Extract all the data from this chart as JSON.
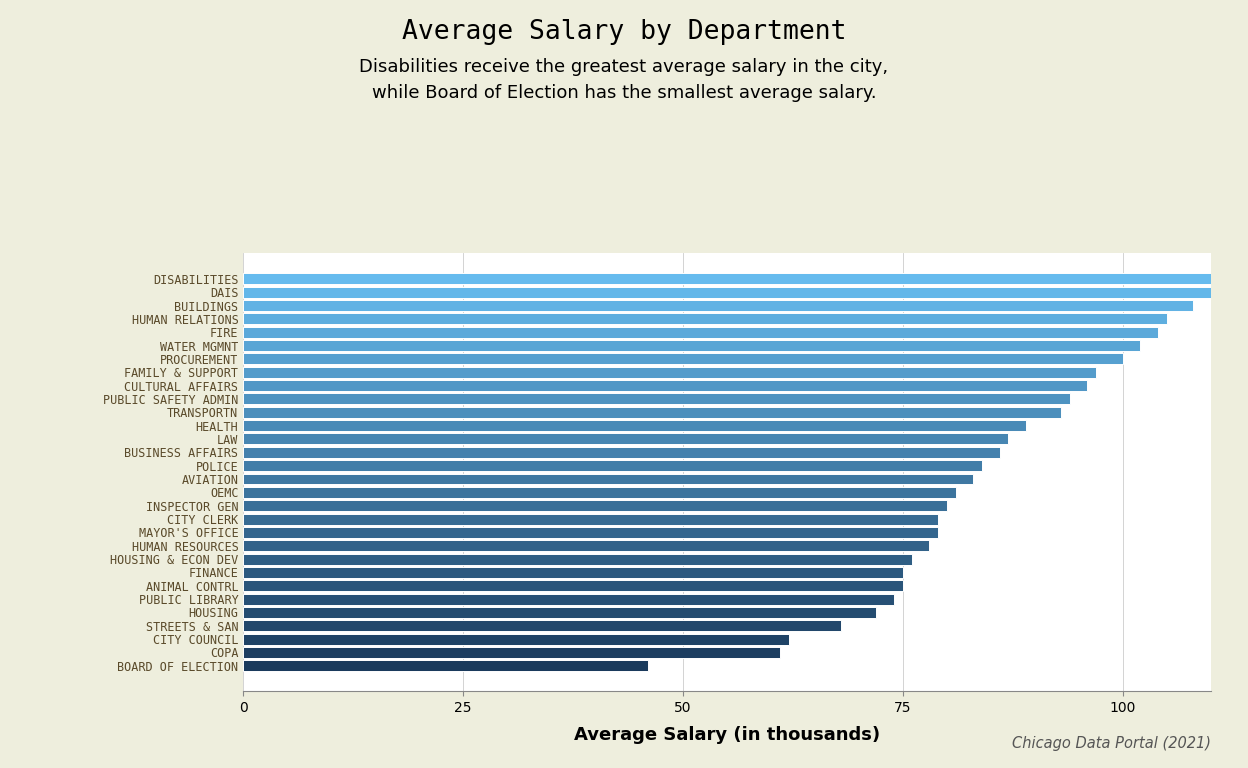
{
  "title": "Average Salary by Department",
  "subtitle": "Disabilities receive the greatest average salary in the city,\nwhile Board of Election has the smallest average salary.",
  "xlabel": "Average Salary (in thousands)",
  "caption": "Chicago Data Portal (2021)",
  "background_color": "#eeeedd",
  "plot_bg_color": "#ffffff",
  "departments": [
    "DISABILITIES",
    "DAIS",
    "BUILDINGS",
    "HUMAN RELATIONS",
    "FIRE",
    "WATER MGMNT",
    "PROCUREMENT",
    "FAMILY & SUPPORT",
    "CULTURAL AFFAIRS",
    "PUBLIC SAFETY ADMIN",
    "TRANSPORTN",
    "HEALTH",
    "LAW",
    "BUSINESS AFFAIRS",
    "POLICE",
    "AVIATION",
    "OEMC",
    "INSPECTOR GEN",
    "CITY CLERK",
    "MAYOR'S OFFICE",
    "HUMAN RESOURCES",
    "HOUSING & ECON DEV",
    "FINANCE",
    "ANIMAL CONTRL",
    "PUBLIC LIBRARY",
    "HOUSING",
    "STREETS & SAN",
    "CITY COUNCIL",
    "COPA",
    "BOARD OF ELECTION"
  ],
  "values": [
    115,
    112,
    108,
    105,
    104,
    102,
    100,
    97,
    96,
    94,
    93,
    89,
    87,
    86,
    84,
    83,
    81,
    80,
    79,
    79,
    78,
    76,
    75,
    75,
    74,
    72,
    68,
    62,
    61,
    46
  ],
  "xlim": [
    0,
    110
  ],
  "xticks": [
    0,
    25,
    50,
    75,
    100
  ],
  "title_fontsize": 19,
  "subtitle_fontsize": 13,
  "xlabel_fontsize": 13,
  "ytick_fontsize": 8.5,
  "xtick_fontsize": 10,
  "caption_fontsize": 10.5,
  "color_top": "#66BBEE",
  "color_bottom": "#1A3A5C"
}
